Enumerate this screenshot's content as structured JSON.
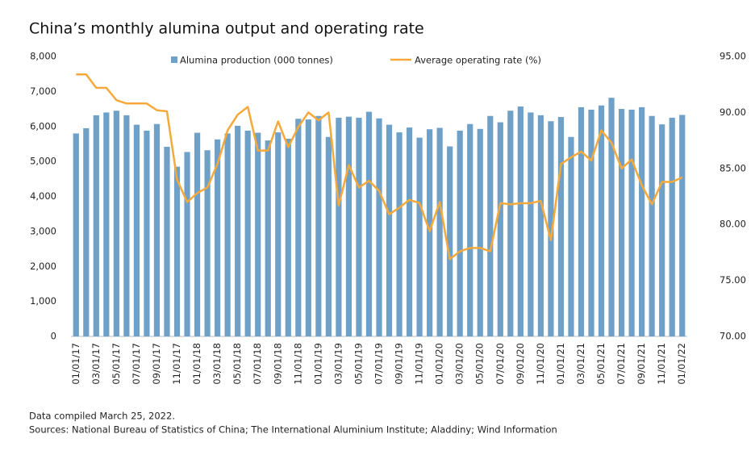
{
  "chart_data": {
    "type": "bar_line",
    "title": "China’s monthly alumina output and operating rate",
    "notes": [
      "Data compiled March 25, 2022.",
      "Sources: National Bureau of Statistics of China; The International Aluminium Institute; Aladdiny; Wind Information"
    ],
    "categories": [
      "01/01/17",
      null,
      "03/01/17",
      null,
      "05/01/17",
      null,
      "07/01/17",
      null,
      "09/01/17",
      null,
      "11/01/17",
      null,
      "01/01/18",
      null,
      "03/01/18",
      null,
      "05/01/18",
      null,
      "07/01/18",
      null,
      "09/01/18",
      null,
      "11/01/18",
      null,
      "01/01/19",
      null,
      "03/01/19",
      null,
      "05/01/19",
      null,
      "07/01/19",
      null,
      "09/01/19",
      null,
      "11/01/19",
      null,
      "01/01/20",
      null,
      "03/01/20",
      null,
      "05/01/20",
      null,
      "07/01/20",
      null,
      "09/01/20",
      null,
      "11/01/20",
      null,
      "01/01/21",
      null,
      "03/01/21",
      null,
      "05/01/21",
      null,
      "07/01/21",
      null,
      "09/01/21",
      null,
      "11/01/21",
      null,
      "01/01/22"
    ],
    "series": [
      {
        "name": "Alumina production (000 tonnes)",
        "color": "#6fa1c8",
        "kind": "bar",
        "values": [
          5800,
          5950,
          6320,
          6400,
          6450,
          6320,
          6050,
          5880,
          6070,
          5420,
          4850,
          5270,
          5820,
          5320,
          5630,
          5800,
          6020,
          5880,
          5820,
          5600,
          5830,
          5650,
          6220,
          6200,
          6300,
          5700,
          6250,
          6280,
          6250,
          6420,
          6230,
          6050,
          5830,
          5970,
          5680,
          5920,
          5960,
          5430,
          5880,
          6070,
          5930,
          6300,
          6120,
          6450,
          6570,
          6400,
          6320,
          6150,
          6270,
          5700,
          6550,
          6480,
          6600,
          6820,
          6500,
          6480,
          6550,
          6300,
          6060,
          6250,
          6330
        ]
      },
      {
        "name": "Average operating rate (%)",
        "color": "#f5a93a",
        "kind": "line",
        "axis": "y2",
        "values": [
          93.4,
          93.4,
          92.2,
          92.2,
          91.1,
          90.8,
          90.8,
          90.8,
          90.2,
          90.1,
          84.0,
          82.0,
          82.8,
          83.3,
          85.4,
          88.4,
          89.8,
          90.5,
          86.6,
          86.6,
          89.2,
          86.9,
          88.7,
          90.0,
          89.3,
          90.0,
          81.7,
          85.3,
          83.3,
          83.9,
          83.0,
          80.9,
          81.5,
          82.2,
          81.9,
          79.4,
          82.0,
          76.9,
          77.6,
          77.9,
          77.9,
          77.6,
          81.9,
          81.8,
          81.9,
          81.9,
          82.1,
          78.6,
          85.4,
          86.0,
          86.5,
          85.7,
          88.4,
          87.3,
          85.0,
          85.8,
          83.5,
          81.8,
          83.8,
          83.8,
          84.2
        ]
      }
    ],
    "ylim": [
      0,
      8000
    ],
    "yticks": [
      0,
      {
        "value": 1000,
        "label": "1,000"
      },
      {
        "value": 2000,
        "label": "2,000"
      },
      {
        "value": 3000,
        "label": "3,000"
      },
      {
        "value": 4000,
        "label": "4,000"
      },
      {
        "value": 5000,
        "label": "5,000"
      },
      {
        "value": 6000,
        "label": "6,000"
      },
      {
        "value": 7000,
        "label": "7,000"
      },
      {
        "value": 8000,
        "label": "8,000"
      }
    ],
    "y2lim": [
      70,
      95
    ],
    "y2ticks": [
      {
        "value": 70,
        "label": "70.00"
      },
      {
        "value": 75,
        "label": "75.00"
      },
      {
        "value": 80,
        "label": "80.00"
      },
      {
        "value": 85,
        "label": "85.00"
      },
      {
        "value": 90,
        "label": "90.00"
      },
      {
        "value": 95,
        "label": "95.00"
      }
    ],
    "legend": "top"
  }
}
